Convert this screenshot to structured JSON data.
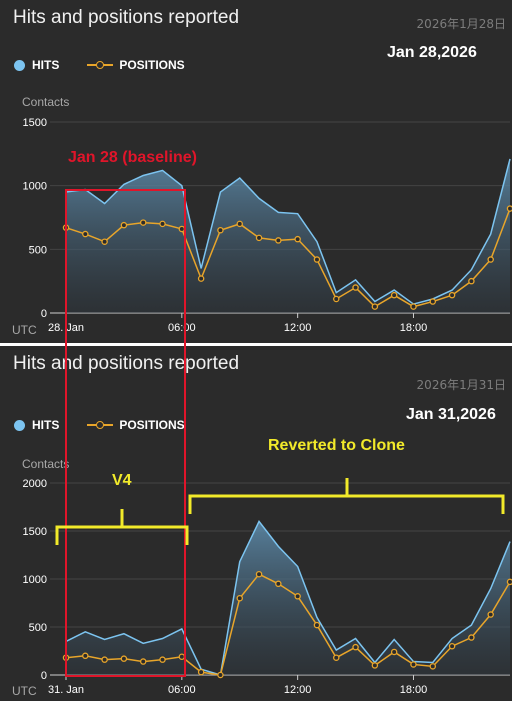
{
  "panels": [
    {
      "title": "Hits and positions reported",
      "datestamp": "2026年1月28日",
      "legend": {
        "hits": "HITS",
        "positions": "POSITIONS"
      },
      "annotation": "Jan 28,2026",
      "y_axis_title": "Contacts",
      "x_axis_title": "UTC",
      "y_ticks": [
        "0",
        "500",
        "1000",
        "1500"
      ],
      "x_ticks": [
        "28. Jan",
        "06:00",
        "12:00",
        "18:00"
      ]
    },
    {
      "title": "Hits and positions reported",
      "datestamp": "2026年1月31日",
      "legend": {
        "hits": "HITS",
        "positions": "POSITIONS"
      },
      "annotation": "Jan 31,2026",
      "y_axis_title": "Contacts",
      "x_axis_title": "UTC",
      "y_ticks": [
        "0",
        "500",
        "1000",
        "1500",
        "2000"
      ],
      "x_ticks": [
        "31. Jan",
        "06:00",
        "12:00",
        "18:00"
      ]
    }
  ],
  "overlay": {
    "baseline_label": "Jan 28 (baseline)",
    "v4_label": "V4",
    "reverted_label": "Reverted to Clone",
    "colors": {
      "baseline": "#e0152a",
      "brace": "#f2ea2a",
      "hits_line": "#7cc4f0",
      "positions_line": "#e8a52a"
    }
  },
  "chart_data": [
    {
      "type": "area",
      "title": "Hits and positions reported",
      "xlabel": "UTC",
      "ylabel": "Contacts",
      "ylim": [
        0,
        1500
      ],
      "x_hours": [
        0,
        1,
        2,
        3,
        4,
        5,
        6,
        7,
        8,
        9,
        10,
        11,
        12,
        13,
        14,
        15,
        16,
        17,
        18,
        19,
        20,
        21,
        22,
        23
      ],
      "series": [
        {
          "name": "HITS",
          "values": [
            950,
            970,
            860,
            1010,
            1080,
            1120,
            1000,
            350,
            950,
            1060,
            900,
            790,
            780,
            560,
            160,
            260,
            90,
            180,
            70,
            110,
            180,
            340,
            620,
            1210
          ]
        },
        {
          "name": "POSITIONS",
          "values": [
            670,
            620,
            560,
            690,
            710,
            700,
            660,
            270,
            650,
            700,
            590,
            570,
            580,
            420,
            110,
            200,
            50,
            140,
            50,
            90,
            140,
            250,
            420,
            820
          ]
        }
      ]
    },
    {
      "type": "area",
      "title": "Hits and positions reported",
      "xlabel": "UTC",
      "ylabel": "Contacts",
      "ylim": [
        0,
        2000
      ],
      "x_hours": [
        0,
        1,
        2,
        3,
        4,
        5,
        6,
        7,
        8,
        9,
        10,
        11,
        12,
        13,
        14,
        15,
        16,
        17,
        18,
        19,
        20,
        21,
        22,
        23
      ],
      "series": [
        {
          "name": "HITS",
          "values": [
            350,
            450,
            370,
            430,
            330,
            380,
            480,
            60,
            0,
            1180,
            1600,
            1340,
            1130,
            600,
            260,
            380,
            130,
            370,
            140,
            130,
            380,
            520,
            900,
            1390
          ]
        },
        {
          "name": "POSITIONS",
          "values": [
            180,
            200,
            160,
            170,
            140,
            160,
            190,
            30,
            0,
            800,
            1050,
            950,
            820,
            520,
            180,
            290,
            100,
            240,
            110,
            90,
            300,
            390,
            630,
            970
          ]
        }
      ]
    }
  ]
}
